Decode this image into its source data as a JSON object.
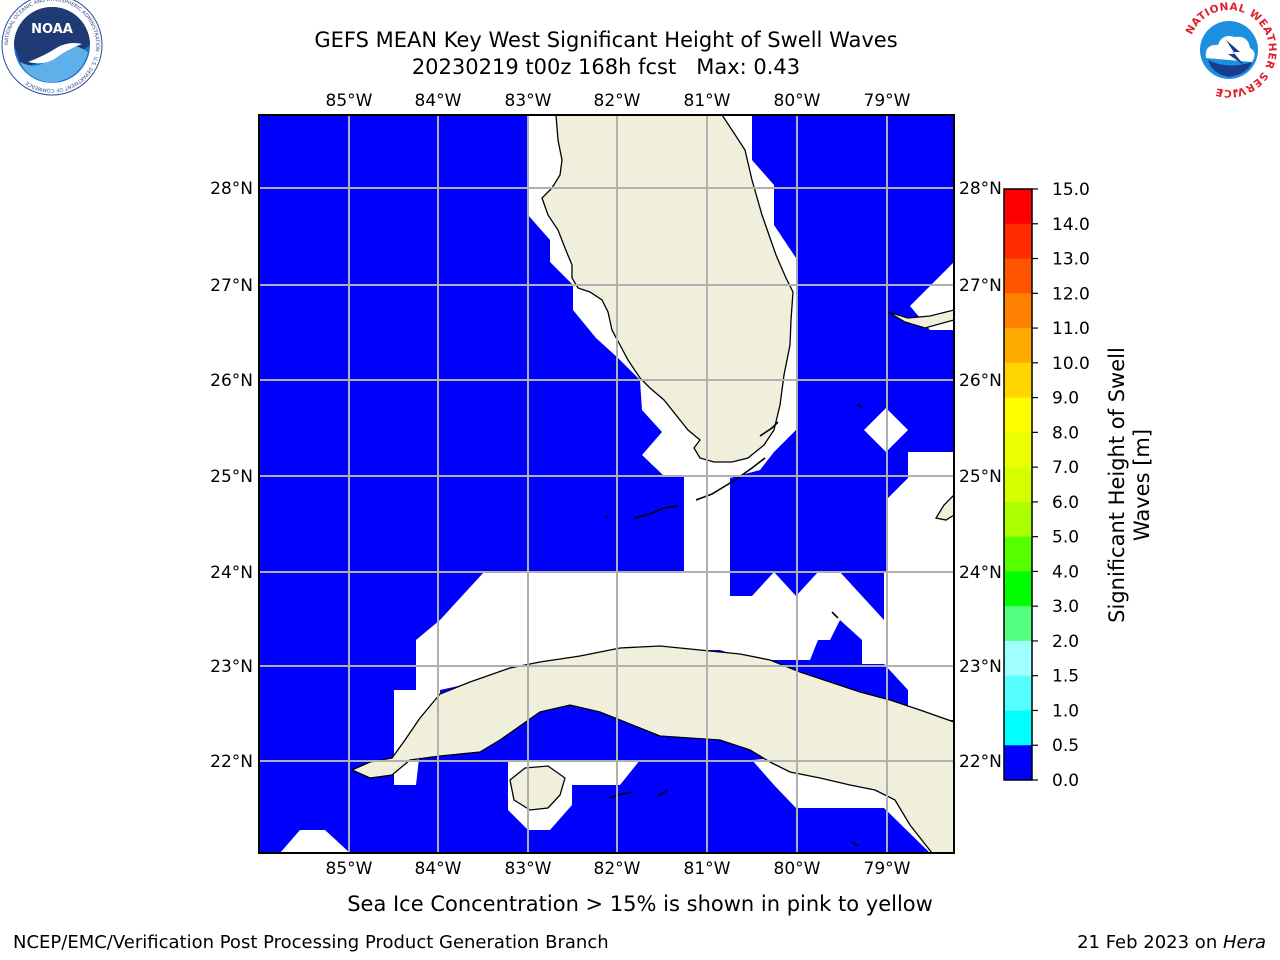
{
  "title": {
    "line1": "GEFS MEAN Key West Significant Height of Swell Waves",
    "line2": "20230219 t00z 168h fcst   Max: 0.43"
  },
  "logos": {
    "left": "noaa-logo",
    "left_text": "NOAA",
    "left_ring_text": "NATIONAL OCEANIC AND ATMOSPHERIC ADMINISTRATION · U.S. DEPARTMENT OF COMMERCE",
    "right": "nws-logo",
    "right_ring_text": "NATIONAL WEATHER SERVICE"
  },
  "map": {
    "lon_labels": [
      "85°W",
      "84°W",
      "83°W",
      "82°W",
      "81°W",
      "80°W",
      "79°W"
    ],
    "lat_labels": [
      "28°N",
      "27°N",
      "26°N",
      "25°N",
      "24°N",
      "23°N",
      "22°N"
    ],
    "ocean_color": "#0000ff",
    "land_color": "#efefdc",
    "gridline_color": "#b0b0b0"
  },
  "colorbar": {
    "label": "Significant Height of Swell Waves [m]",
    "ticks": [
      "15.0",
      "14.0",
      "13.0",
      "12.0",
      "11.0",
      "10.0",
      "9.0",
      "8.0",
      "7.0",
      "6.0",
      "5.0",
      "4.0",
      "3.0",
      "2.0",
      "1.5",
      "1.0",
      "0.5",
      "0.0"
    ],
    "colors": [
      "#ff0000",
      "#ff2a00",
      "#ff5500",
      "#ff8000",
      "#ffaa00",
      "#ffd500",
      "#ffff00",
      "#eaff00",
      "#d5ff00",
      "#aaff00",
      "#55ff00",
      "#00ff00",
      "#55ff80",
      "#a0ffff",
      "#55ffff",
      "#00ffff",
      "#0080ff",
      "#0000ff"
    ]
  },
  "subcaption": "Sea Ice Concentration > 15% is shown in pink to yellow",
  "footer": {
    "left": "NCEP/EMC/Verification Post Processing Product Generation Branch",
    "right_prefix": "21 Feb 2023 on ",
    "right_italic": "Hera"
  }
}
